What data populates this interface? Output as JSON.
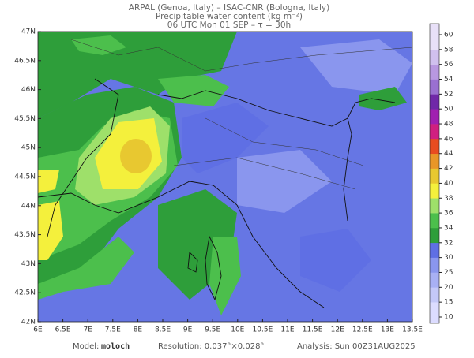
{
  "header": {
    "line1": "ARPAL (Genoa, Italy)  –  ISAC-CNR (Bologna, Italy)",
    "line2": "Precipitable water content (kg m⁻²)",
    "line3": "06 UTC Mon 01 SEP  –  τ = 30h"
  },
  "map": {
    "lat_labels": [
      "42N",
      "42.5N",
      "43N",
      "43.5N",
      "44N",
      "44.5N",
      "45N",
      "45.5N",
      "46N",
      "46.5N",
      "47N"
    ],
    "lon_labels": [
      "6E",
      "6.5E",
      "7E",
      "7.5E",
      "8E",
      "8.5E",
      "9E",
      "9.5E",
      "10E",
      "10.5E",
      "11E",
      "11.5E",
      "12E",
      "12.5E",
      "13E",
      "13.5E"
    ]
  },
  "colorbar": {
    "ticks": [
      10,
      15,
      20,
      25,
      30,
      32,
      34,
      36,
      38,
      40,
      42,
      44,
      46,
      48,
      50,
      52,
      54,
      56,
      58,
      60
    ],
    "colors": [
      "#dcdcff",
      "#c4c8f8",
      "#a8b0f4",
      "#8a96ee",
      "#5f6fe4",
      "#2e9e3a",
      "#4cbf4c",
      "#9ee06a",
      "#f4f03c",
      "#e8c830",
      "#e89628",
      "#e84c20",
      "#d02080",
      "#a020b0",
      "#7028a8",
      "#9a70d0",
      "#b898e0",
      "#d0c0ee",
      "#e8e0f8"
    ]
  },
  "footer": {
    "model_label": "Model:",
    "model": "moloch",
    "resolution": "Resolution: 0.037°×0.028°",
    "analysis": "Analysis: Sun 00Z31AUG2025"
  }
}
